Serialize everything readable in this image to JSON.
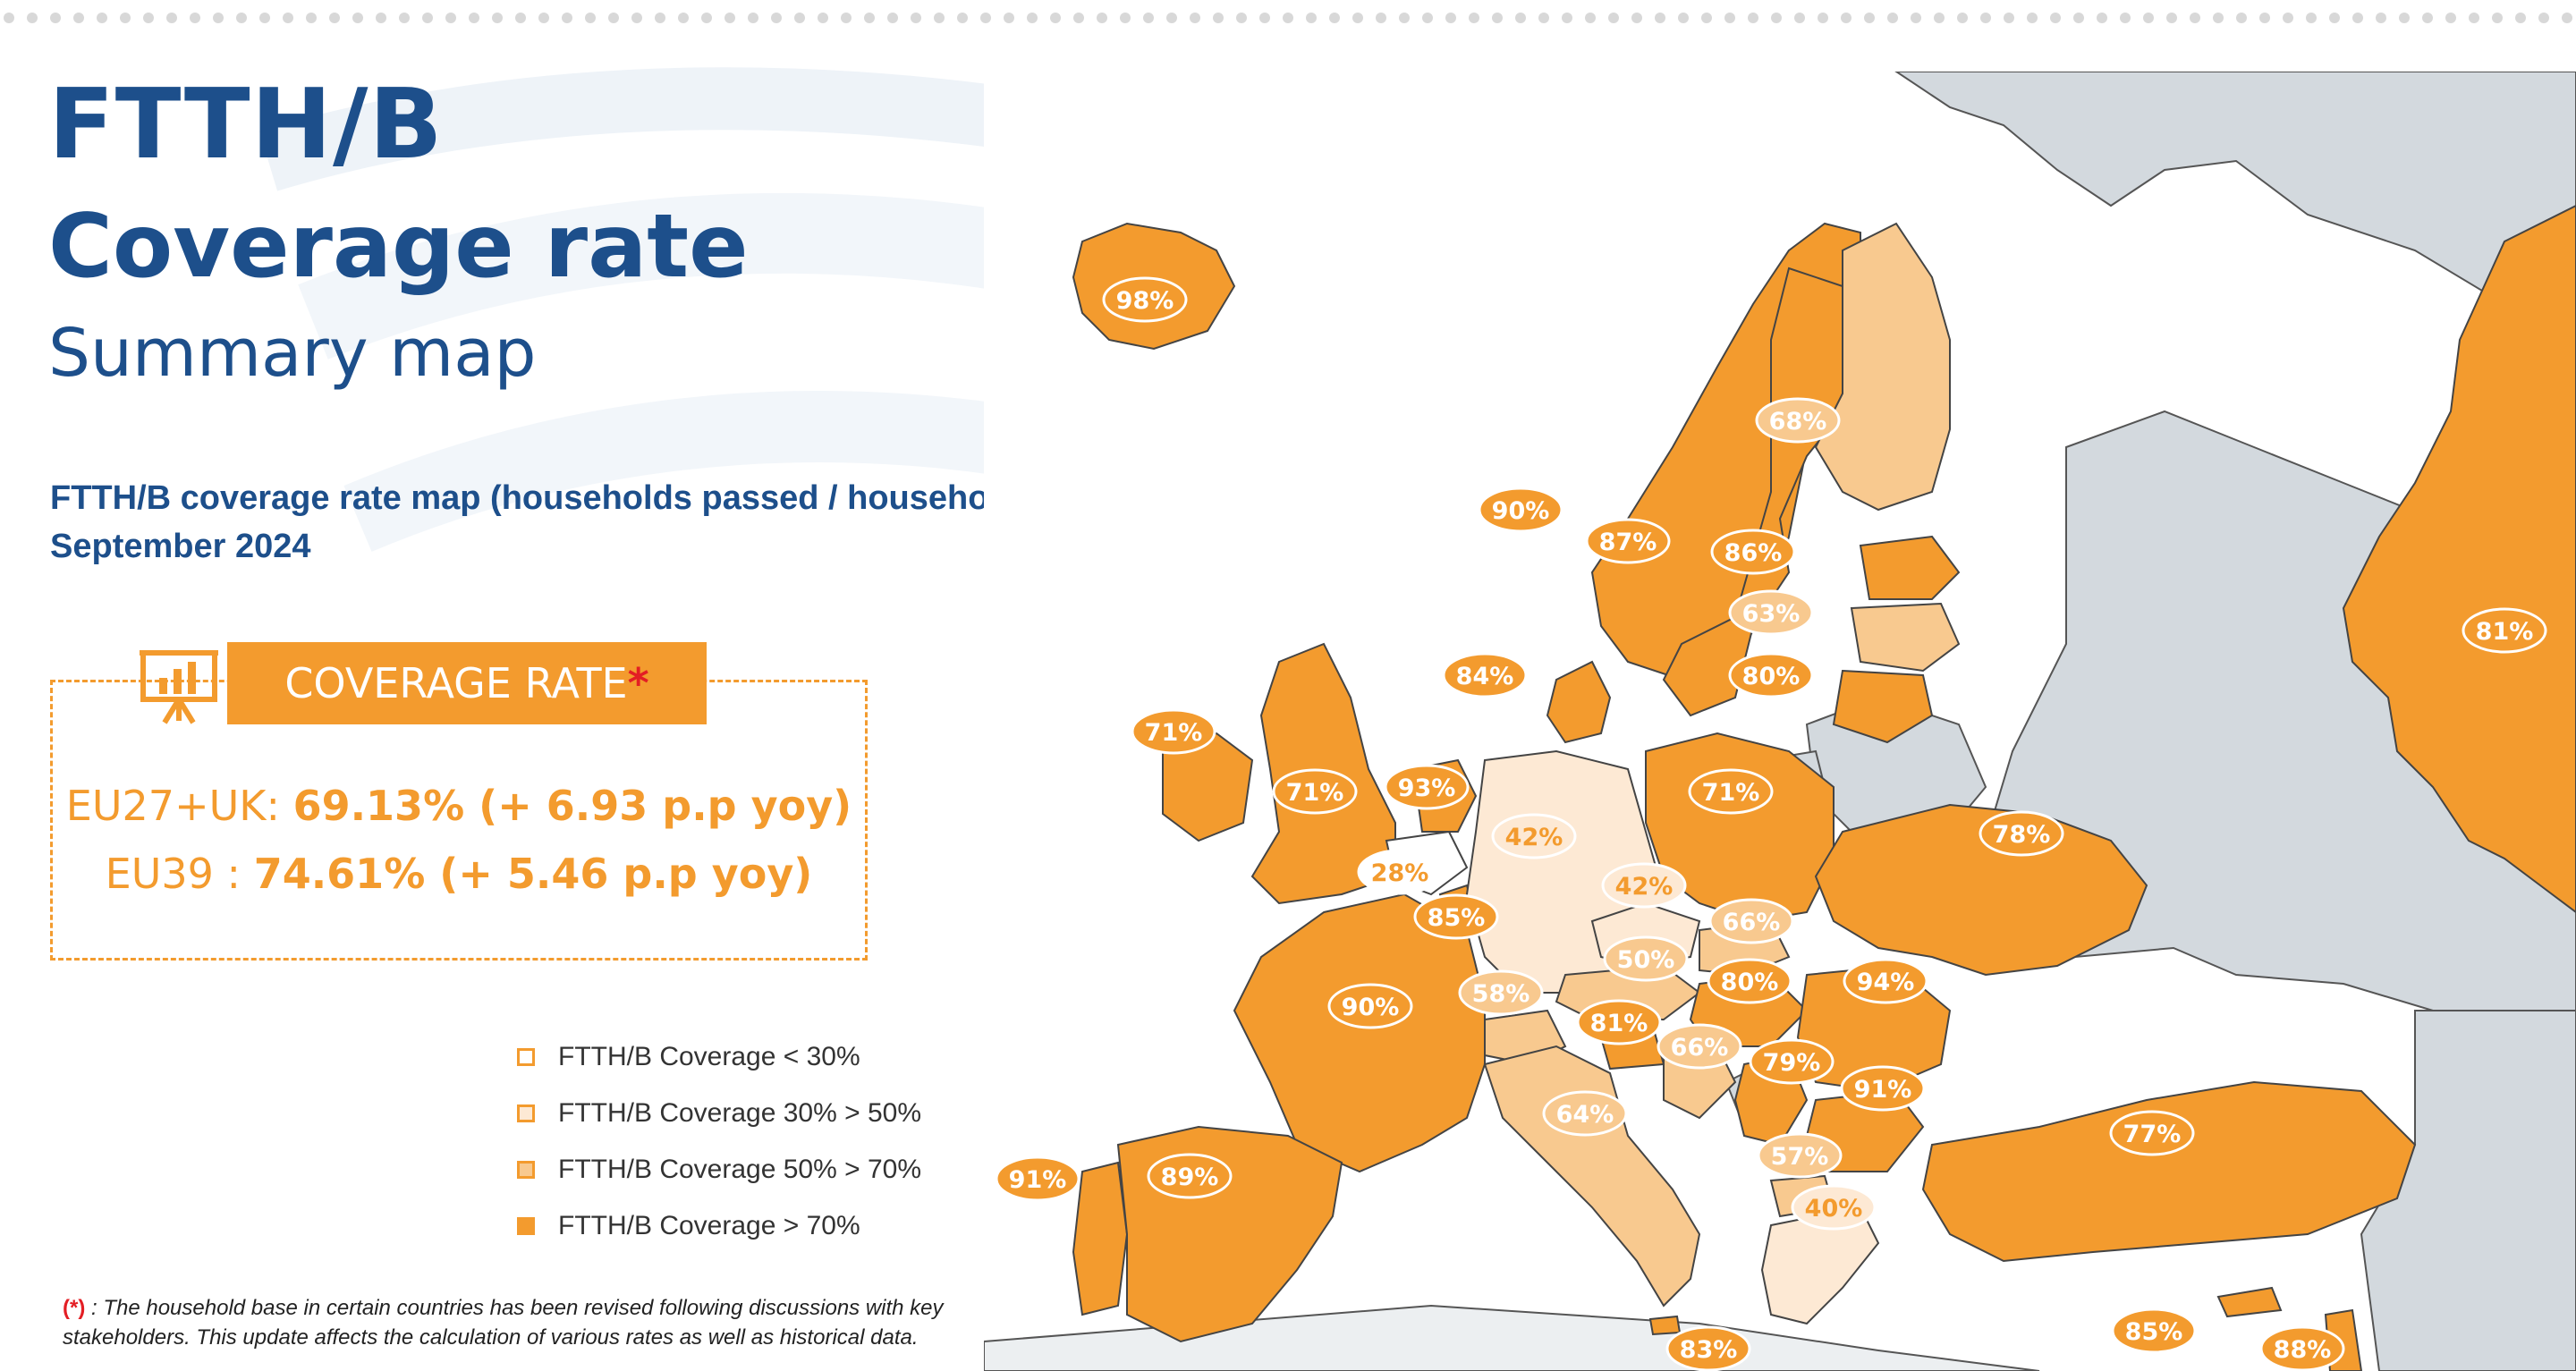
{
  "header": {
    "title_line1": "FTTH/B",
    "title_line2": "Coverage rate",
    "title_line3": "Summary map",
    "subtitle_line1": "FTTH/B coverage rate map (households passed / households) -",
    "subtitle_line2": "September 2024"
  },
  "coverage_rate": {
    "label": "COVERAGE RATE",
    "asterisk": "*",
    "eu27uk_label": "EU27+UK: ",
    "eu27uk_value": "69.13% (+ 6.93 p.p yoy)",
    "eu39_label": "EU39 : ",
    "eu39_value": "74.61% (+ 5.46 p.p yoy)"
  },
  "legend": [
    {
      "label": "FTTH/B Coverage < 30%",
      "color": "#ffffff"
    },
    {
      "label": "FTTH/B Coverage 30% > 50%",
      "color": "#fde9d4"
    },
    {
      "label": "FTTH/B Coverage 50% > 70%",
      "color": "#f8c98f"
    },
    {
      "label": "FTTH/B Coverage > 70%",
      "color": "#f39b2e"
    }
  ],
  "footnote": {
    "marker": "(*)",
    "text_line1": " : The household base in certain countries has been revised following discussions with key",
    "text_line2": "stakeholders. This update affects the calculation of various rates as well as historical data."
  },
  "colors": {
    "title": "#1d4f8b",
    "accent": "#f39b2e",
    "light_band": "#fde9d4",
    "mid_band": "#f8c98f",
    "non_covered": "#d3d9de"
  },
  "map": {
    "countries": [
      {
        "name": "iceland",
        "value": "98%",
        "band": "high"
      },
      {
        "name": "norway",
        "value": "90%",
        "band": "high"
      },
      {
        "name": "sweden",
        "value": "87%",
        "band": "high"
      },
      {
        "name": "finland",
        "value": "68%",
        "band": "mid"
      },
      {
        "name": "estonia",
        "value": "86%",
        "band": "high"
      },
      {
        "name": "latvia",
        "value": "63%",
        "band": "mid"
      },
      {
        "name": "lithuania",
        "value": "80%",
        "band": "high"
      },
      {
        "name": "denmark",
        "value": "84%",
        "band": "high"
      },
      {
        "name": "ireland",
        "value": "71%",
        "band": "high"
      },
      {
        "name": "uk",
        "value": "71%",
        "band": "high"
      },
      {
        "name": "netherlands",
        "value": "93%",
        "band": "high"
      },
      {
        "name": "belgium",
        "value": "28%",
        "band": "none"
      },
      {
        "name": "luxembourg",
        "value": "85%",
        "band": "high"
      },
      {
        "name": "germany",
        "value": "42%",
        "band": "light"
      },
      {
        "name": "poland",
        "value": "71%",
        "band": "high"
      },
      {
        "name": "ukraine",
        "value": "78%",
        "band": "high"
      },
      {
        "name": "czechia",
        "value": "42%",
        "band": "light"
      },
      {
        "name": "slovakia",
        "value": "66%",
        "band": "mid"
      },
      {
        "name": "austria",
        "value": "50%",
        "band": "mid"
      },
      {
        "name": "switzerland",
        "value": "58%",
        "band": "mid"
      },
      {
        "name": "hungary",
        "value": "80%",
        "band": "high"
      },
      {
        "name": "romania",
        "value": "94%",
        "band": "high"
      },
      {
        "name": "slovenia",
        "value": "81%",
        "band": "high"
      },
      {
        "name": "croatia",
        "value": "66%",
        "band": "mid"
      },
      {
        "name": "serbia",
        "value": "79%",
        "band": "high"
      },
      {
        "name": "bulgaria",
        "value": "91%",
        "band": "high"
      },
      {
        "name": "france",
        "value": "90%",
        "band": "high"
      },
      {
        "name": "italy",
        "value": "64%",
        "band": "mid"
      },
      {
        "name": "north-macedonia",
        "value": "57%",
        "band": "mid"
      },
      {
        "name": "greece",
        "value": "40%",
        "band": "light"
      },
      {
        "name": "turkey",
        "value": "77%",
        "band": "high"
      },
      {
        "name": "russia",
        "value": "81%",
        "band": "high"
      },
      {
        "name": "portugal",
        "value": "91%",
        "band": "high"
      },
      {
        "name": "spain",
        "value": "89%",
        "band": "high"
      },
      {
        "name": "malta",
        "value": "83%",
        "band": "high"
      },
      {
        "name": "cyprus",
        "value": "85%",
        "band": "high"
      },
      {
        "name": "israel",
        "value": "88%",
        "band": "high"
      }
    ]
  }
}
